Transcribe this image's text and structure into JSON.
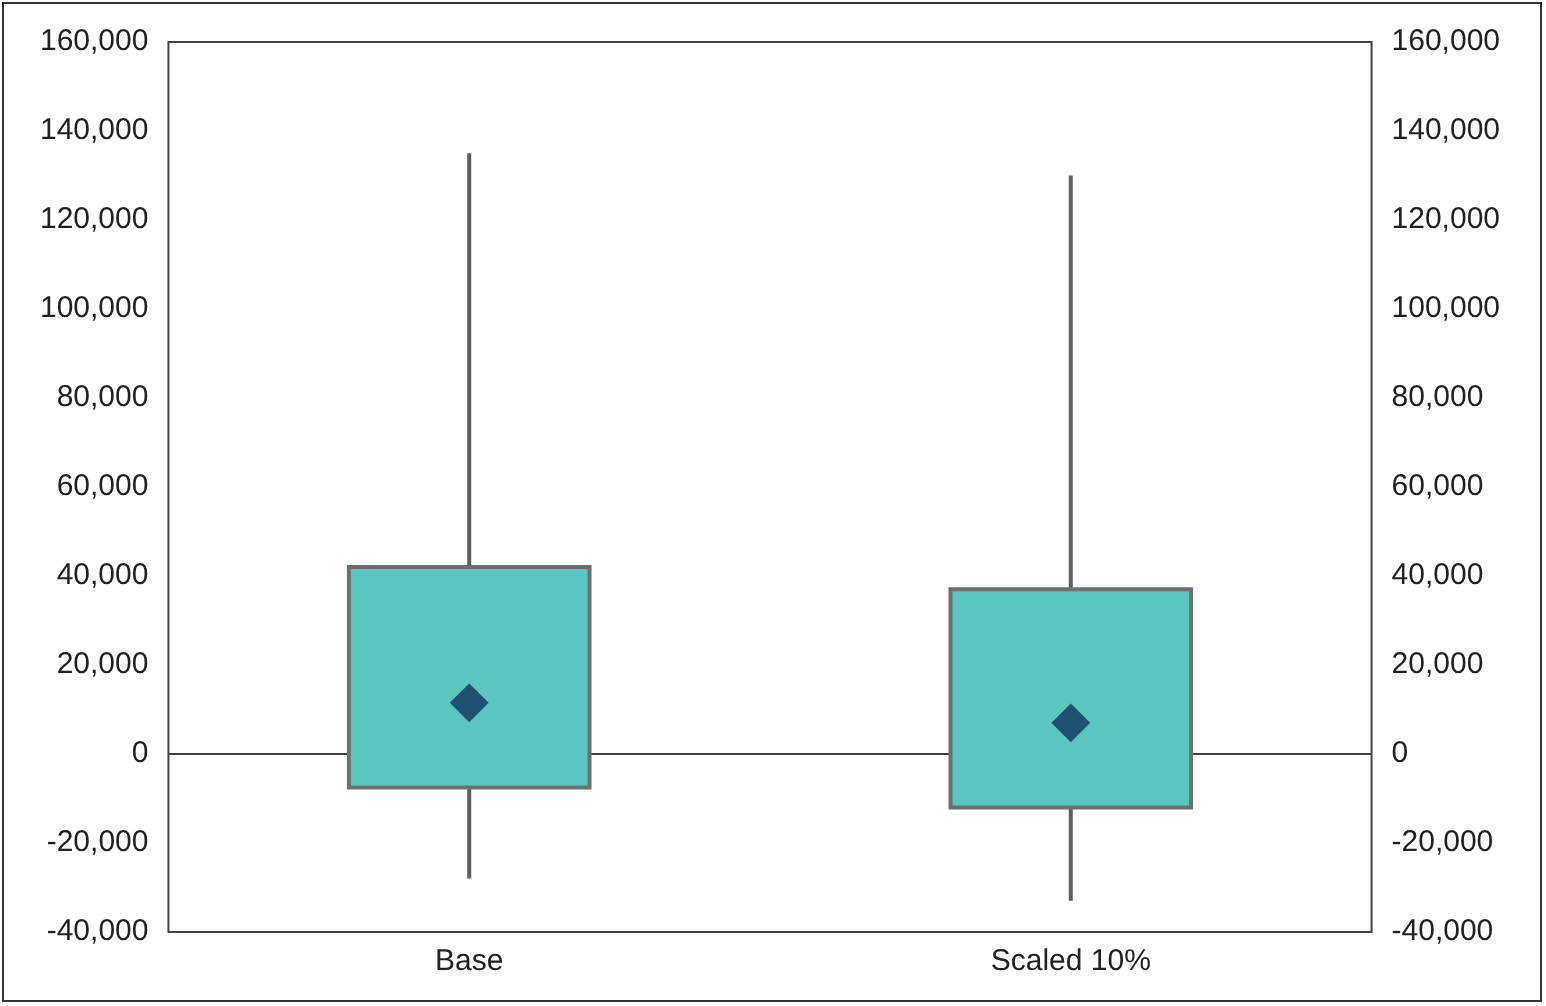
{
  "chart_data": {
    "type": "box",
    "categories": [
      "Base",
      "Scaled 10%"
    ],
    "boxes": [
      {
        "low": -28000,
        "q1": -7500,
        "median": 11500,
        "q3": 42000,
        "high": 135000
      },
      {
        "low": -33000,
        "q1": -12000,
        "median": 7000,
        "q3": 37000,
        "high": 130000
      }
    ],
    "color": "#5bc5c0",
    "marker": "diamond",
    "ylim": [
      -40000,
      160000
    ],
    "yticks": [
      {
        "value": -40000,
        "label": "-40,000"
      },
      {
        "value": -20000,
        "label": "-20,000"
      },
      {
        "value": 0,
        "label": "0"
      },
      {
        "value": 20000,
        "label": "20,000"
      },
      {
        "value": 40000,
        "label": "40,000"
      },
      {
        "value": 60000,
        "label": "60,000"
      },
      {
        "value": 80000,
        "label": "80,000"
      },
      {
        "value": 100000,
        "label": "100,000"
      },
      {
        "value": 120000,
        "label": "120,000"
      },
      {
        "value": 140000,
        "label": "140,000"
      },
      {
        "value": 160000,
        "label": "160,000"
      }
    ],
    "y2lim": [
      -40000,
      160000
    ],
    "y2ticks": [
      {
        "value": -40000,
        "label": "-40,000"
      },
      {
        "value": -20000,
        "label": "-20,000"
      },
      {
        "value": 0,
        "label": "0"
      },
      {
        "value": 20000,
        "label": "20,000"
      },
      {
        "value": 40000,
        "label": "40,000"
      },
      {
        "value": 60000,
        "label": "60,000"
      },
      {
        "value": 80000,
        "label": "80,000"
      },
      {
        "value": 100000,
        "label": "100,000"
      },
      {
        "value": 120000,
        "label": "120,000"
      },
      {
        "value": 140000,
        "label": "140,000"
      },
      {
        "value": 160000,
        "label": "160,000"
      }
    ],
    "ref_lines": [
      {
        "axis": "y",
        "value": 0,
        "color": "#404040"
      }
    ],
    "grid": false,
    "legend": false
  }
}
